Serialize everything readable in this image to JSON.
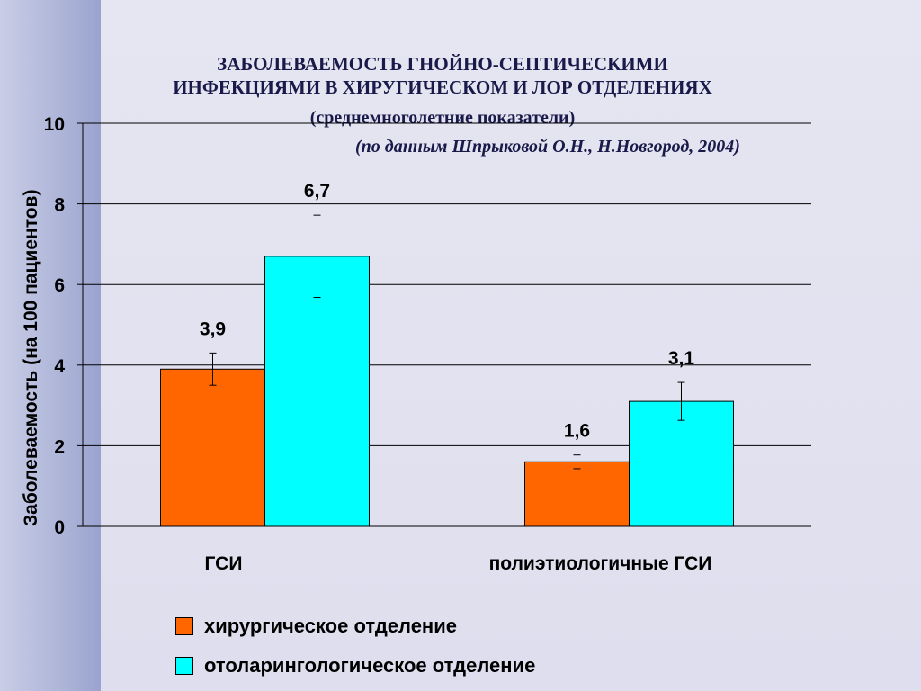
{
  "chart_data": {
    "type": "bar",
    "title_lines": [
      "ЗАБОЛЕВАЕМОСТЬ ГНОЙНО-СЕПТИЧЕСКИМИ",
      "ИНФЕКЦИЯМИ  В ХИРУГИЧЕСКОМ И ЛОР ОТДЕЛЕНИЯХ"
    ],
    "subtitle": "(среднемноголетние показатели)",
    "source": "(по данным Шпрыковой О.Н., Н.Новгород, 2004)",
    "ylabel": "Заболеваемость (на 100 пациентов)",
    "xlabel": "",
    "categories": [
      "ГСИ",
      "полиэтиологичные ГСИ"
    ],
    "ylim": [
      0,
      10
    ],
    "yticks": [
      0,
      2,
      4,
      6,
      8,
      10
    ],
    "grid": true,
    "legend_position": "bottom",
    "series": [
      {
        "name": "хирургическое отделение",
        "color": "#ff6600",
        "values": [
          3.9,
          1.6
        ],
        "labels": [
          "3,9",
          "1,6"
        ],
        "error": [
          0.4,
          0.17
        ]
      },
      {
        "name": "отоларингологическое отделение",
        "color": "#00ffff",
        "values": [
          6.7,
          3.1
        ],
        "labels": [
          "6,7",
          "3,1"
        ],
        "error": [
          1.02,
          0.47
        ]
      }
    ]
  }
}
